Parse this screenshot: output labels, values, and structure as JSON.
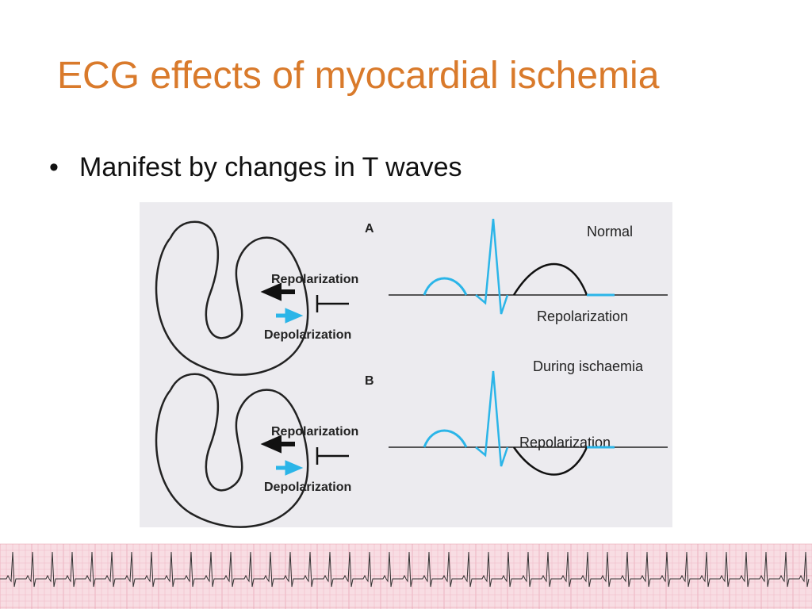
{
  "slide": {
    "title": "ECG effects of myocardial ischemia",
    "bullets": [
      "Manifest by changes in T waves"
    ]
  },
  "figure": {
    "panels": [
      {
        "label": "A",
        "caption": "Normal",
        "arrow_top": "Repolarization",
        "arrow_bottom": "Depolarization",
        "wave_label": "Repolarization"
      },
      {
        "label": "B",
        "caption": "During ischaemia",
        "arrow_top": "Repolarization",
        "arrow_bottom": "Depolarization",
        "wave_label": "Repolarization"
      }
    ]
  }
}
